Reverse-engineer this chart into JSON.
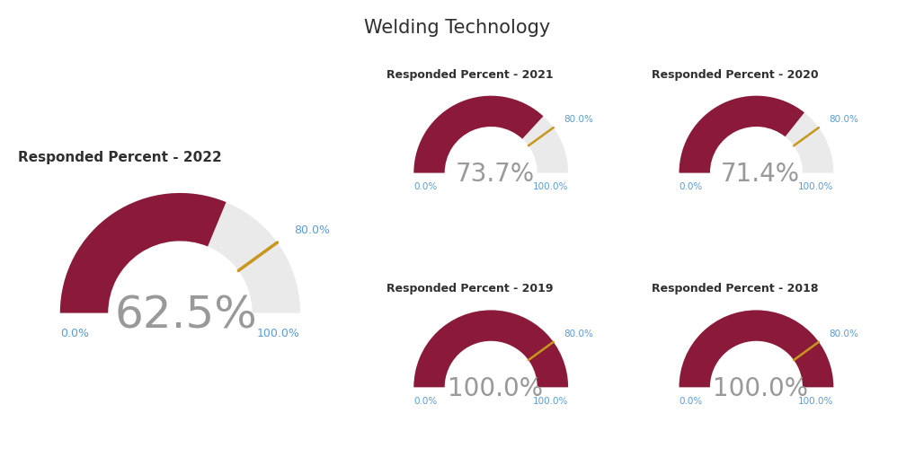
{
  "title": "Welding Technology",
  "gauges": [
    {
      "label": "Responded Percent - 2022",
      "value": 62.5,
      "large": true
    },
    {
      "label": "Responded Percent - 2021",
      "value": 73.7,
      "large": false
    },
    {
      "label": "Responded Percent - 2020",
      "value": 71.4,
      "large": false
    },
    {
      "label": "Responded Percent - 2019",
      "value": 100.0,
      "large": false
    },
    {
      "label": "Responded Percent - 2018",
      "value": 100.0,
      "large": false
    }
  ],
  "gauge_color": "#8B1A3A",
  "bg_color": "#EAEAEA",
  "needle_color": "#C8971C",
  "tick_color": "#5B9BD5",
  "value_color": "#999999",
  "title_color": "#2F2F2F",
  "label_color": "#2F2F2F",
  "background": "#FFFFFF",
  "marker_value": 80.0
}
